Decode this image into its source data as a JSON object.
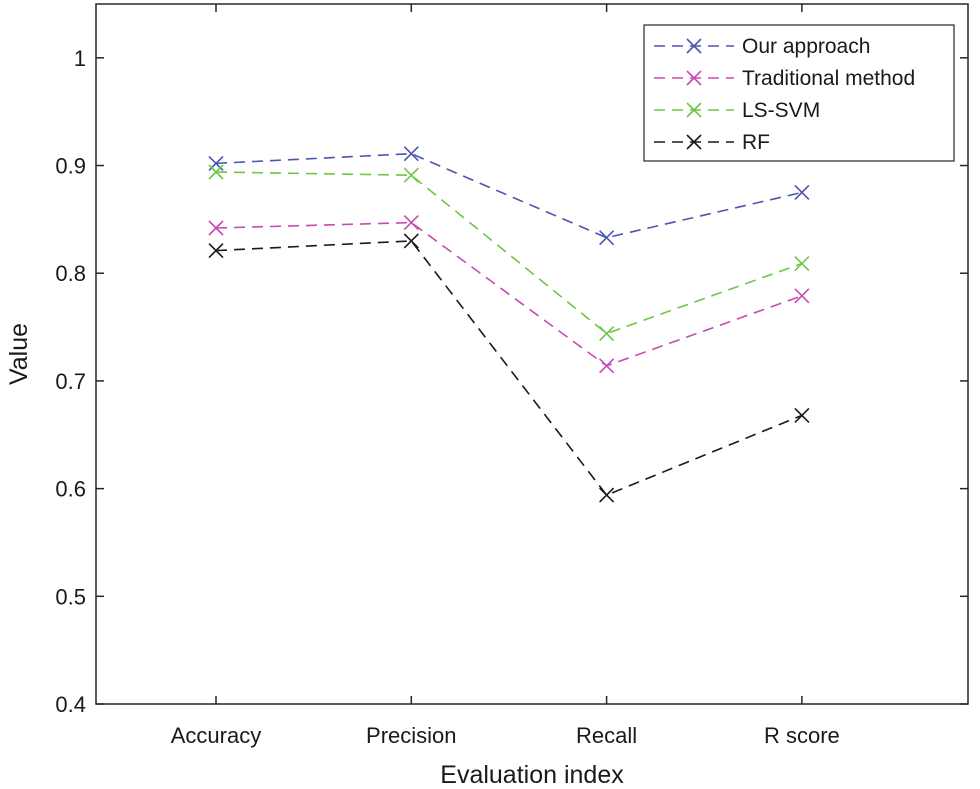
{
  "chart_data": {
    "type": "line",
    "title": "",
    "xlabel": "Evaluation index",
    "ylabel": "Value",
    "categories": [
      "Accuracy",
      "Precision",
      "Recall",
      "R score"
    ],
    "ylim": [
      0.4,
      1.05
    ],
    "yticks": [
      "0.4",
      "0.5",
      "0.6",
      "0.7",
      "0.8",
      "0.9",
      "1"
    ],
    "ytick_values": [
      0.4,
      0.5,
      0.6,
      0.7,
      0.8,
      0.9,
      1.0
    ],
    "grid": false,
    "legend_position": "top-right",
    "line_style": "dashed",
    "marker": "x",
    "series": [
      {
        "name": "Our approach",
        "color": "#4a56b0",
        "values": [
          0.902,
          0.911,
          0.833,
          0.875
        ]
      },
      {
        "name": "Traditional method",
        "color": "#c64bb0",
        "values": [
          0.842,
          0.847,
          0.714,
          0.779
        ]
      },
      {
        "name": "LS-SVM",
        "color": "#6fc646",
        "values": [
          0.894,
          0.891,
          0.744,
          0.809
        ]
      },
      {
        "name": "RF",
        "color": "#1a1a1a",
        "values": [
          0.821,
          0.83,
          0.594,
          0.668
        ]
      }
    ]
  }
}
